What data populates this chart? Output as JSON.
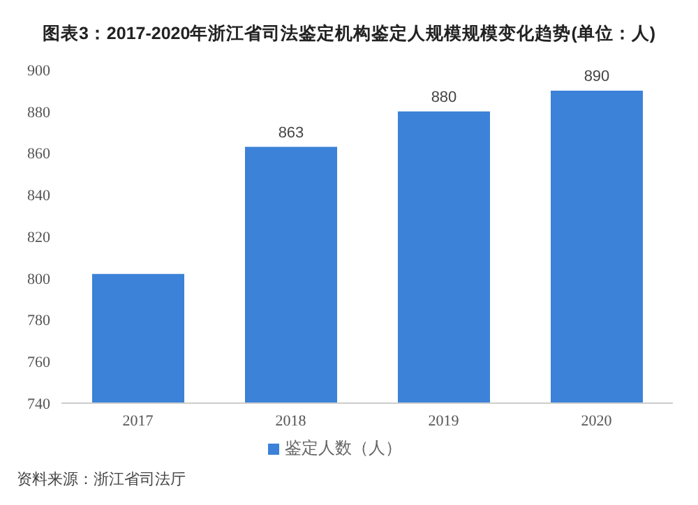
{
  "chart_data": {
    "type": "bar",
    "title": "图表3：2017-2020年浙江省司法鉴定机构鉴定人规模规模变化趋势(单位：人)",
    "categories": [
      "2017",
      "2018",
      "2019",
      "2020"
    ],
    "series": [
      {
        "name": "鉴定人数（人）",
        "color": "#3b82d8",
        "values": [
          802,
          863,
          880,
          890
        ],
        "value_labels": [
          null,
          "863",
          "880",
          "890"
        ]
      }
    ],
    "ylim": [
      740,
      900
    ],
    "yticks": [
      740,
      760,
      780,
      800,
      820,
      840,
      860,
      880,
      900
    ],
    "grid": false,
    "legend": "bottom",
    "annotations": [
      "资料来源：浙江省司法厅"
    ]
  }
}
